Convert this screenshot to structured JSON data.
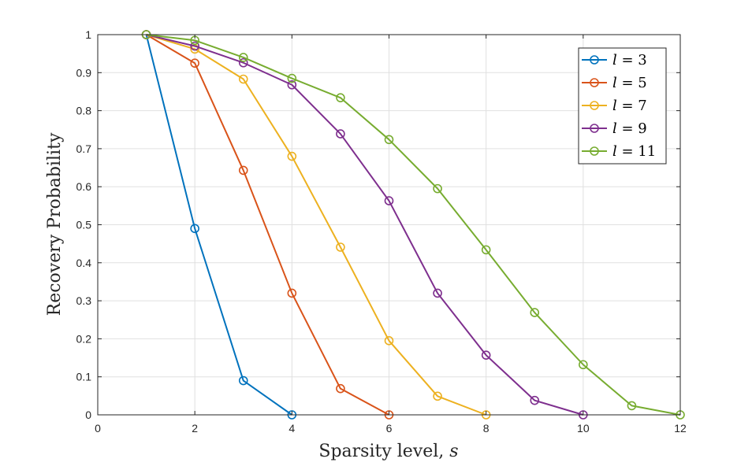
{
  "chart_data": {
    "type": "line",
    "xlabel": "Sparsity level, ",
    "xlabel_var": "s",
    "ylabel": "Recovery Probability",
    "xlim": [
      0,
      12
    ],
    "ylim": [
      0,
      1
    ],
    "xticks": [
      "0",
      "2",
      "4",
      "6",
      "8",
      "10",
      "12"
    ],
    "yticks": [
      "0",
      "0.1",
      "0.2",
      "0.3",
      "0.4",
      "0.5",
      "0.6",
      "0.7",
      "0.8",
      "0.9",
      "1"
    ],
    "grid": true,
    "legend_position": "top-right",
    "marker": "circle",
    "series": [
      {
        "name": "l = 3",
        "legend_var": "l",
        "legend_rest": " = 3",
        "color": "#0072BD",
        "x": [
          1,
          2,
          3,
          4
        ],
        "y": [
          1.0,
          0.49,
          0.09,
          0.0
        ]
      },
      {
        "name": "l = 5",
        "legend_var": "l",
        "legend_rest": " = 5",
        "color": "#D95319",
        "x": [
          1,
          2,
          3,
          4,
          5,
          6
        ],
        "y": [
          1.0,
          0.925,
          0.643,
          0.32,
          0.069,
          0.0
        ]
      },
      {
        "name": "l = 7",
        "legend_var": "l",
        "legend_rest": " = 7",
        "color": "#EDB120",
        "x": [
          1,
          2,
          3,
          4,
          5,
          6,
          7,
          8
        ],
        "y": [
          1.0,
          0.962,
          0.883,
          0.68,
          0.441,
          0.195,
          0.049,
          0.0
        ]
      },
      {
        "name": "l = 9",
        "legend_var": "l",
        "legend_rest": " = 9",
        "color": "#7E2F8E",
        "x": [
          1,
          2,
          3,
          4,
          5,
          6,
          7,
          8,
          9,
          10
        ],
        "y": [
          1.0,
          0.97,
          0.926,
          0.868,
          0.739,
          0.563,
          0.32,
          0.157,
          0.038,
          0.0
        ]
      },
      {
        "name": "l = 11",
        "legend_var": "l",
        "legend_rest": " = 11",
        "color": "#77AC30",
        "x": [
          1,
          2,
          3,
          4,
          5,
          6,
          7,
          8,
          9,
          10,
          11,
          12
        ],
        "y": [
          1.0,
          0.985,
          0.94,
          0.885,
          0.834,
          0.724,
          0.595,
          0.434,
          0.269,
          0.132,
          0.024,
          0.0
        ]
      }
    ]
  }
}
